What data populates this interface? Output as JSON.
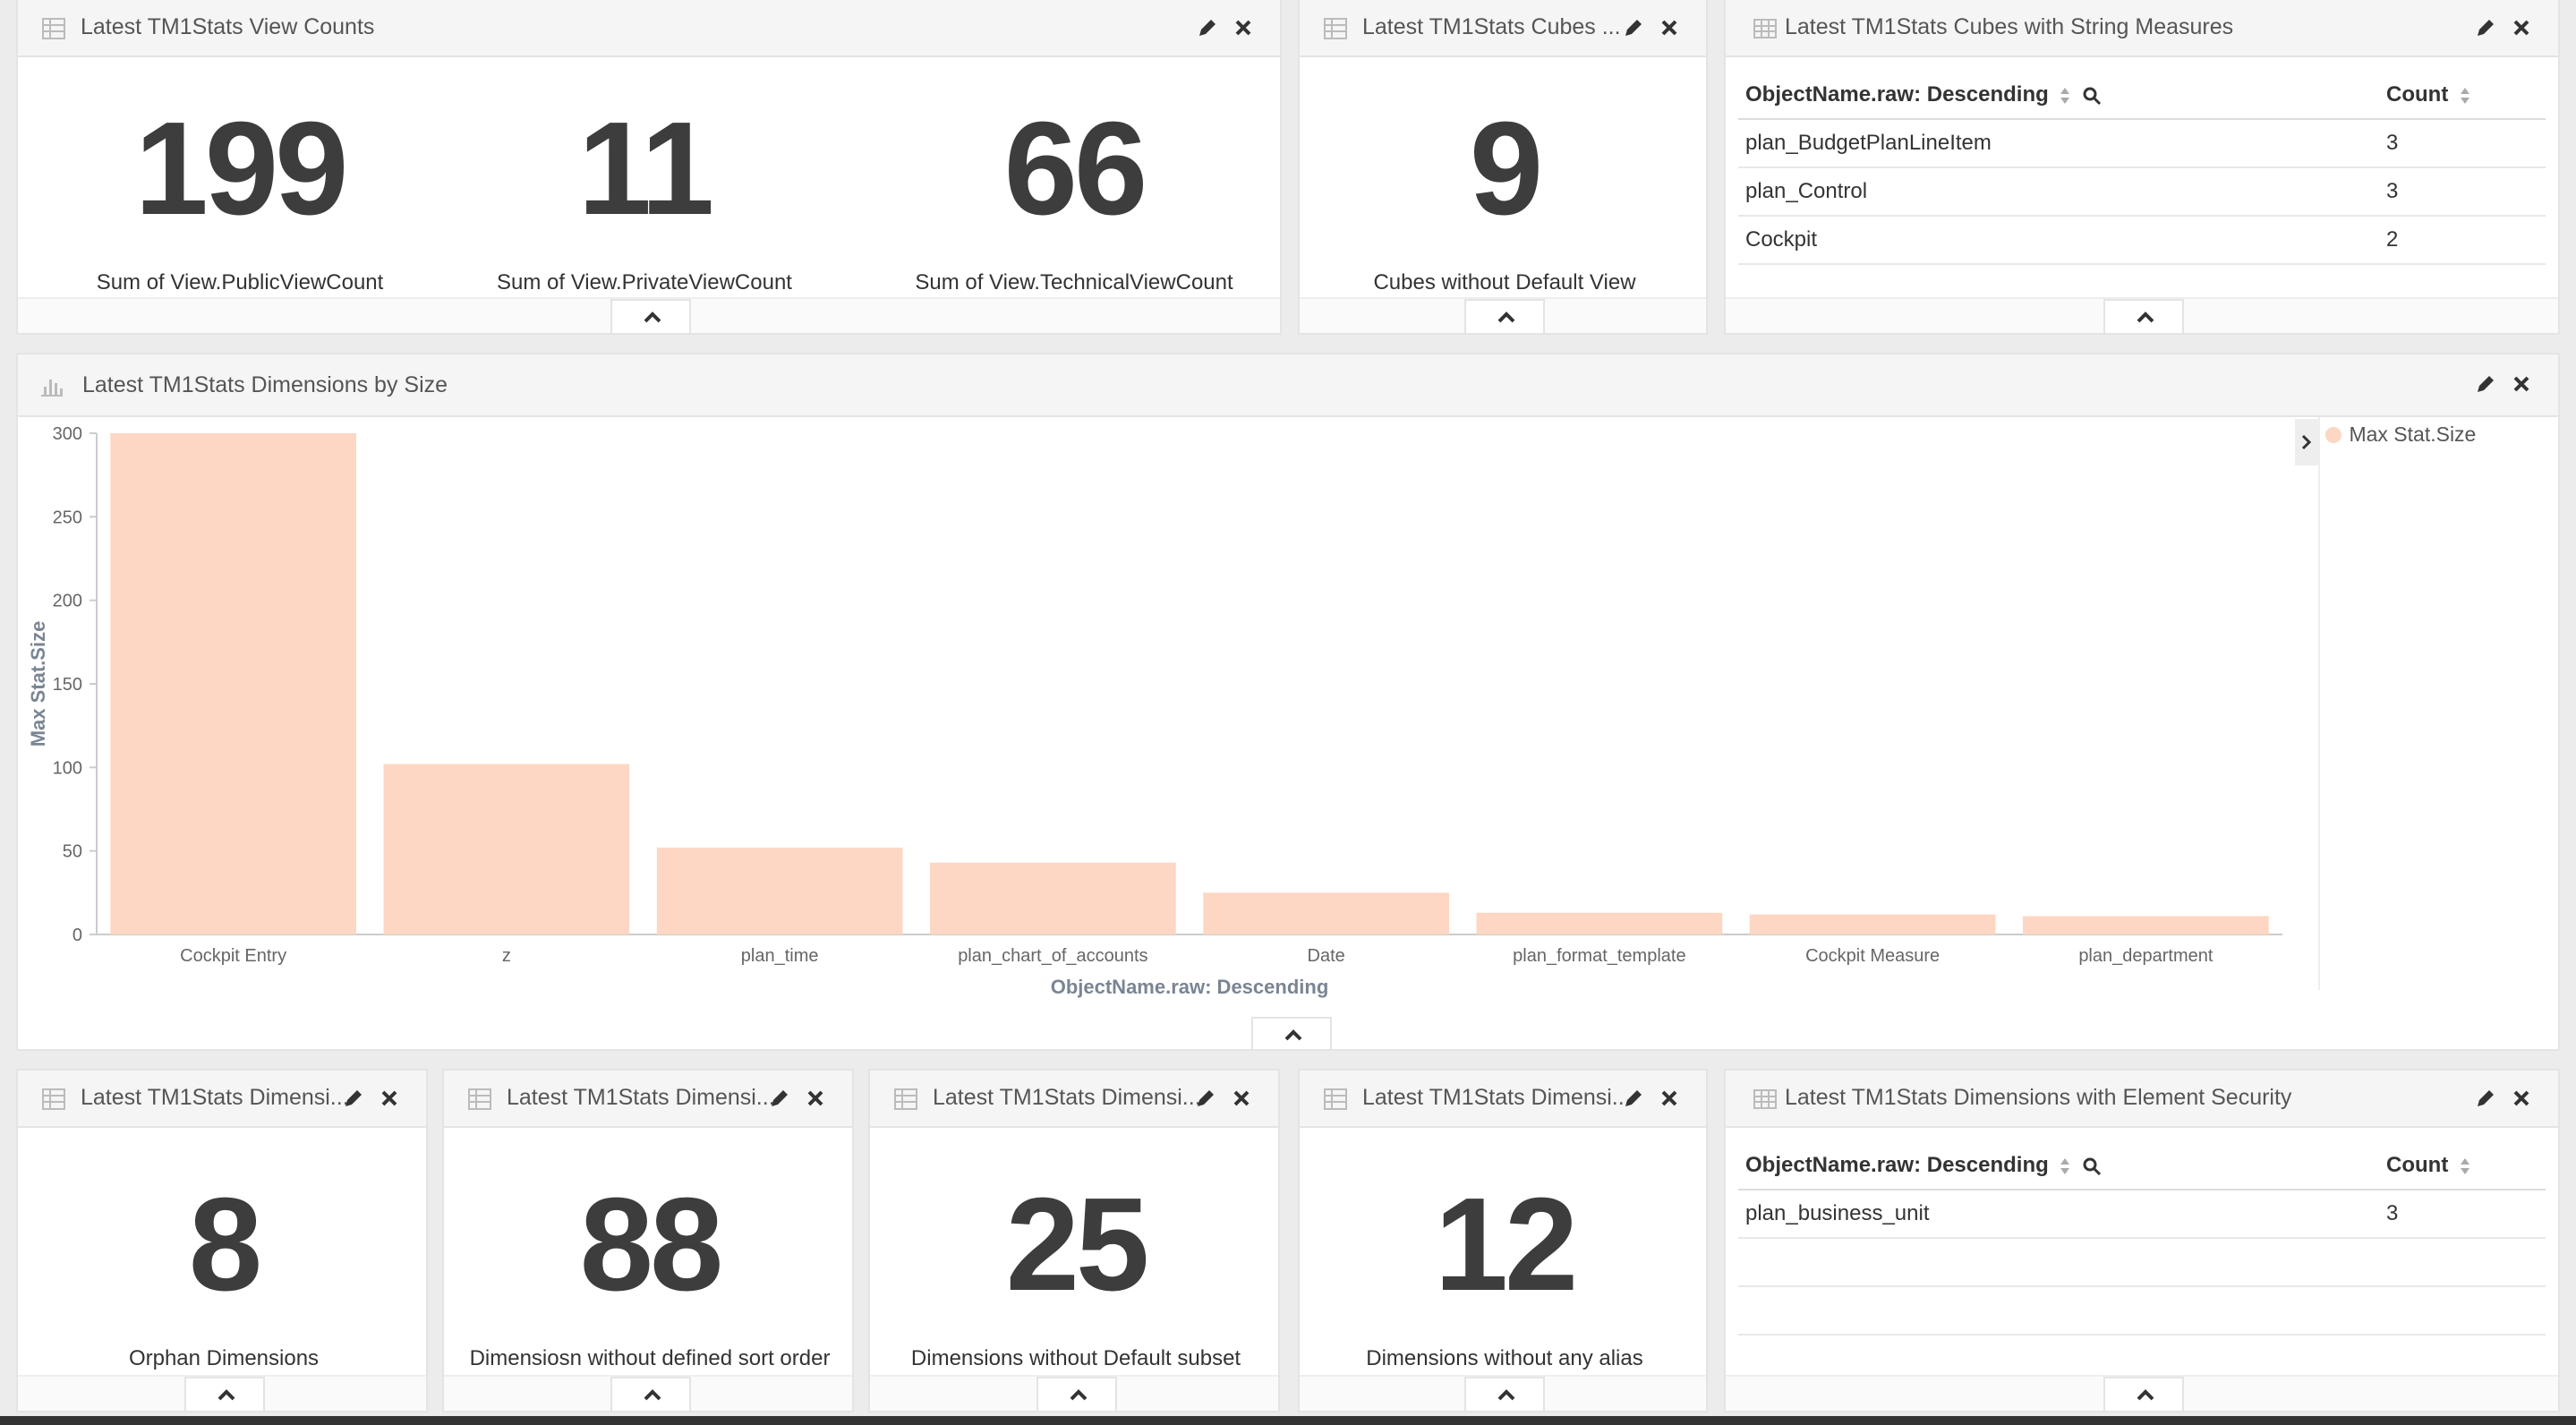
{
  "panels": {
    "view_counts": {
      "title": "Latest TM1Stats View Counts",
      "metrics": [
        {
          "value": "199",
          "label": "Sum of View.PublicViewCount"
        },
        {
          "value": "11",
          "label": "Sum of View.PrivateViewCount"
        },
        {
          "value": "66",
          "label": "Sum of View.TechnicalViewCount"
        }
      ]
    },
    "cubes_no_default": {
      "title": "Latest TM1Stats Cubes ...",
      "value": "9",
      "label": "Cubes without Default View"
    },
    "cubes_string": {
      "title": "Latest TM1Stats Cubes with String Measures",
      "col1": "ObjectName.raw: Descending",
      "col2": "Count",
      "rows": [
        {
          "name": "plan_BudgetPlanLineItem",
          "count": "3"
        },
        {
          "name": "plan_Control",
          "count": "3"
        },
        {
          "name": "Cockpit",
          "count": "2"
        }
      ]
    },
    "dims_by_size": {
      "title": "Latest TM1Stats Dimensions by Size",
      "legend": "Max Stat.Size"
    },
    "orphan": {
      "title": "Latest TM1Stats Dimensi...",
      "value": "8",
      "label": "Orphan Dimensions"
    },
    "no_sort": {
      "title": "Latest TM1Stats Dimensi...",
      "value": "88",
      "label": "Dimensiosn without defined sort order"
    },
    "no_subset": {
      "title": "Latest TM1Stats Dimensi...",
      "value": "25",
      "label": "Dimensions without Default subset"
    },
    "no_alias": {
      "title": "Latest TM1Stats Dimensi...",
      "value": "12",
      "label": "Dimensions without any alias"
    },
    "element_security": {
      "title": "Latest TM1Stats Dimensions with Element Security",
      "col1": "ObjectName.raw: Descending",
      "col2": "Count",
      "rows": [
        {
          "name": "plan_business_unit",
          "count": "3"
        }
      ]
    }
  },
  "chart_data": {
    "type": "bar",
    "categories": [
      "Cockpit Entry",
      "z",
      "plan_time",
      "plan_chart_of_accounts",
      "Date",
      "plan_format_template",
      "Cockpit Measure",
      "plan_department"
    ],
    "series": [
      {
        "name": "Max Stat.Size",
        "values": [
          300,
          102,
          52,
          43,
          25,
          13,
          12,
          11
        ]
      }
    ],
    "xlabel": "ObjectName.raw: Descending",
    "ylabel": "Max Stat.Size",
    "ylim": [
      0,
      300
    ],
    "yticks": [
      0,
      50,
      100,
      150,
      200,
      250,
      300
    ],
    "legend_position": "right",
    "bar_color": "#fdd7c3",
    "grid": false
  },
  "colors": {
    "bar": "#fdd7c3",
    "metric_text": "#3d3d3d",
    "header_bg": "#f5f5f5"
  },
  "icons": {
    "table": "table-icon",
    "bar_chart": "bar-chart-icon",
    "edit": "pencil-icon",
    "close": "close-icon",
    "collapse": "chevron-up-icon",
    "search": "search-icon",
    "sort": "sort-icon",
    "legend_toggle": "chevron-right-icon"
  }
}
